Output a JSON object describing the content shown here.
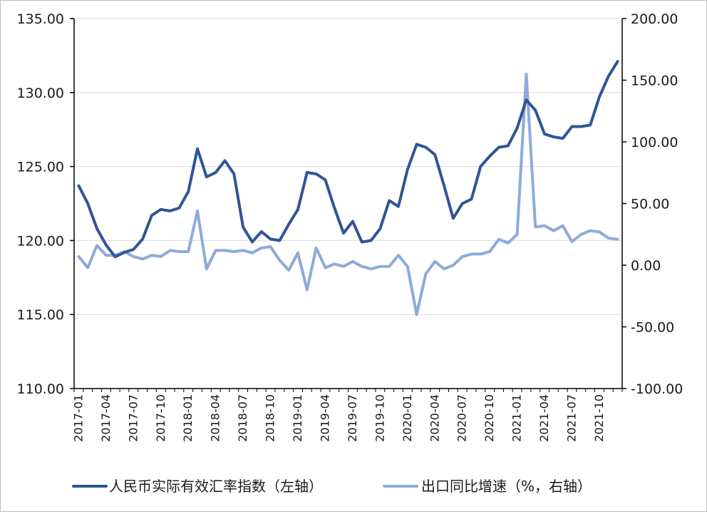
{
  "chart_data": {
    "type": "line",
    "title": "",
    "xlabel": "",
    "ylabel": "",
    "x": [
      "2017-01",
      "2017-02",
      "2017-03",
      "2017-04",
      "2017-05",
      "2017-06",
      "2017-07",
      "2017-08",
      "2017-09",
      "2017-10",
      "2017-11",
      "2017-12",
      "2018-01",
      "2018-02",
      "2018-03",
      "2018-04",
      "2018-05",
      "2018-06",
      "2018-07",
      "2018-08",
      "2018-09",
      "2018-10",
      "2018-11",
      "2018-12",
      "2019-01",
      "2019-02",
      "2019-03",
      "2019-04",
      "2019-05",
      "2019-06",
      "2019-07",
      "2019-08",
      "2019-09",
      "2019-10",
      "2019-11",
      "2019-12",
      "2020-01",
      "2020-02",
      "2020-03",
      "2020-04",
      "2020-05",
      "2020-06",
      "2020-07",
      "2020-08",
      "2020-09",
      "2020-10",
      "2020-11",
      "2020-12",
      "2021-01",
      "2021-02",
      "2021-03",
      "2021-04",
      "2021-05",
      "2021-06",
      "2021-07",
      "2021-08",
      "2021-09",
      "2021-10",
      "2021-11",
      "2021-12"
    ],
    "x_tick_labels": [
      "2017-01",
      "2017-04",
      "2017-07",
      "2017-10",
      "2018-01",
      "2018-04",
      "2018-07",
      "2018-10",
      "2019-01",
      "2019-04",
      "2019-07",
      "2019-10",
      "2020-01",
      "2020-04",
      "2020-07",
      "2020-10",
      "2021-01",
      "2021-04",
      "2021-07",
      "2021-10"
    ],
    "y_left": {
      "ylim": [
        110,
        135
      ],
      "ticks": [
        "110.00",
        "115.00",
        "120.00",
        "125.00",
        "130.00",
        "135.00"
      ]
    },
    "y_right": {
      "ylim": [
        -100,
        200
      ],
      "ticks": [
        "-100.00",
        "-50.00",
        "0.00",
        "50.00",
        "100.00",
        "150.00",
        "200.00"
      ]
    },
    "grid": "horizontal",
    "legend_position": "bottom",
    "series": [
      {
        "name": "人民币实际有效汇率指数（左轴）",
        "axis": "left",
        "color": "#2f5597",
        "values": [
          123.7,
          122.5,
          120.8,
          119.7,
          118.9,
          119.2,
          119.4,
          120.1,
          121.7,
          122.1,
          122.0,
          122.2,
          123.3,
          126.2,
          124.3,
          124.6,
          125.4,
          124.5,
          120.9,
          119.9,
          120.6,
          120.1,
          120.0,
          121.1,
          122.1,
          124.6,
          124.5,
          124.1,
          122.2,
          120.5,
          121.3,
          119.9,
          120.0,
          120.8,
          122.7,
          122.3,
          124.8,
          126.5,
          126.3,
          125.8,
          123.7,
          121.5,
          122.5,
          122.8,
          125.0,
          125.7,
          126.3,
          126.4,
          127.6,
          129.5,
          128.8,
          127.2,
          127.0,
          126.9,
          127.7,
          127.7,
          127.8,
          129.7,
          131.1,
          132.1
        ]
      },
      {
        "name": "出口同比增速（%，右轴）",
        "axis": "right",
        "color": "#8eaadb",
        "values": [
          7.0,
          -2.0,
          16.0,
          8.0,
          8.0,
          11.0,
          7.0,
          5.0,
          8.0,
          7.0,
          12.0,
          11.0,
          11.0,
          44.0,
          -3.0,
          12.0,
          12.0,
          11.0,
          12.0,
          10.0,
          14.0,
          15.0,
          4.0,
          -4.0,
          10.0,
          -20.0,
          14.0,
          -2.0,
          1.0,
          -1.0,
          3.0,
          -1.0,
          -3.0,
          -1.0,
          -1.0,
          8.0,
          -1.0,
          -40.0,
          -7.0,
          3.0,
          -3.0,
          0.0,
          7.0,
          9.0,
          9.0,
          11.0,
          21.0,
          18.0,
          25.0,
          155.0,
          31.0,
          32.0,
          28.0,
          32.0,
          19.0,
          25.0,
          28.0,
          27.0,
          22.0,
          21.0
        ]
      }
    ]
  }
}
